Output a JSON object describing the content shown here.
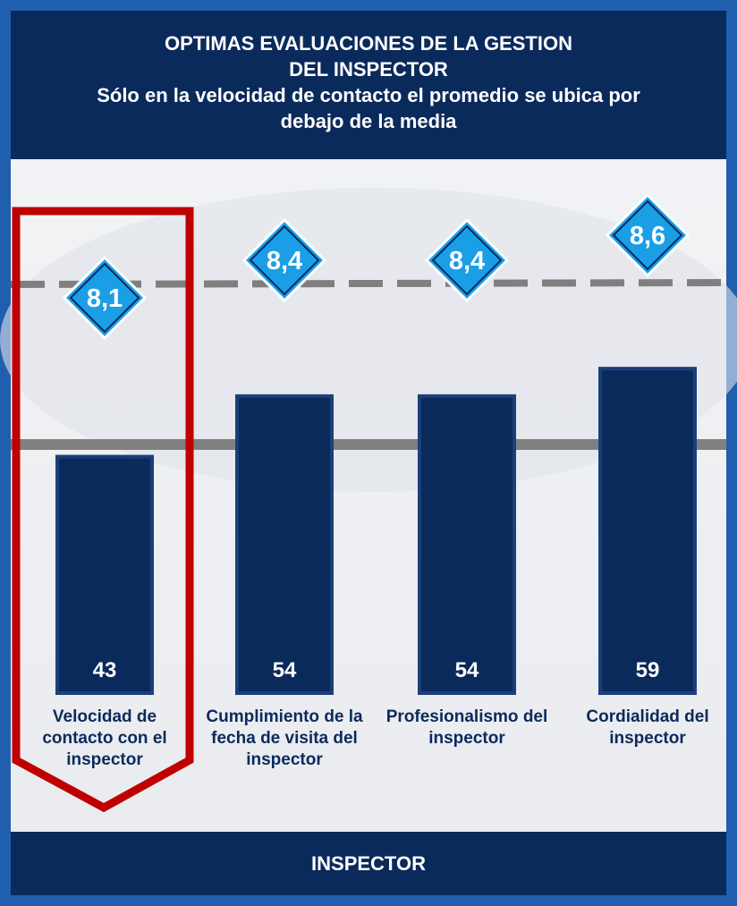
{
  "chart_data": {
    "type": "bar",
    "title": "OPTIMAS EVALUACIONES DE LA GESTION DEL INSPECTOR",
    "subtitle": "Sólo en la velocidad de contacto el promedio se ubica por debajo de la media",
    "x_label": "INSPECTOR",
    "categories": [
      "Velocidad de contacto con el inspector",
      "Cumplimiento de la fecha de visita del inspector",
      "Profesionalismo del inspector",
      "Cordialidad del inspector"
    ],
    "series": [
      {
        "values": [
          43,
          54,
          54,
          59
        ],
        "color": "#0b2a5c",
        "marker": "bar"
      },
      {
        "values": [
          8.1,
          8.4,
          8.4,
          8.6
        ],
        "value_labels": [
          "8,1",
          "8,4",
          "8,4",
          "8,6"
        ],
        "color": "#1a9fe6",
        "marker": "diamond"
      }
    ]
  }
}
